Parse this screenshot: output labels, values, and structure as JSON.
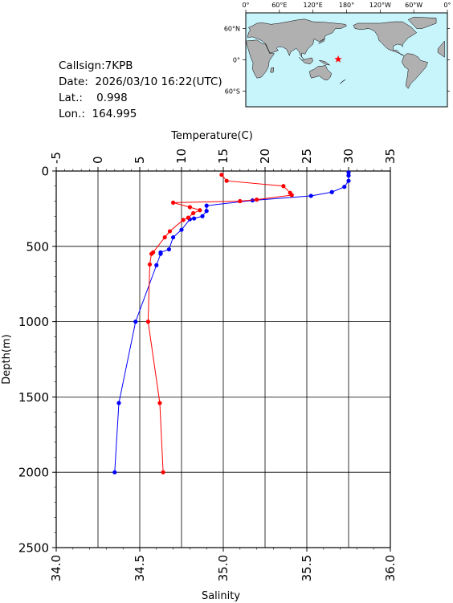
{
  "station": {
    "callsign_line": "Callsign:7KPB",
    "date_line": "Date:  2026/03/10 16:22(UTC)",
    "lat_line": "Lat.:    0.998",
    "lon_line": "Lon.:  164.995"
  },
  "map": {
    "lon_ticks": [
      "0°",
      "60°E",
      "120°E",
      "180°",
      "120°W",
      "60°W",
      "0°"
    ],
    "lat_ticks": [
      "60°N",
      "0°",
      "60°S"
    ],
    "marker_lon": 164.995,
    "marker_lat": 0.998,
    "ocean_color": "#c8f4fc",
    "land_color": "#b0b0b0",
    "marker_color": "#ff0000"
  },
  "chart_data": {
    "type": "line",
    "ylabel": "Depth(m)",
    "ylim": [
      0,
      2500
    ],
    "y_inverted": true,
    "yticks": [
      0,
      500,
      1000,
      1500,
      2000,
      2500
    ],
    "top_axis": {
      "label": "Temperature(C)",
      "range": [
        -5,
        35
      ],
      "ticks": [
        -5,
        0,
        5,
        10,
        15,
        20,
        25,
        30,
        35
      ]
    },
    "bottom_axis": {
      "label": "Salinity",
      "range": [
        34.0,
        36.0
      ],
      "ticks": [
        "34.0",
        "34.5",
        "35.0",
        "35.5",
        "36.0"
      ]
    },
    "grid": true,
    "series": [
      {
        "axis": "top",
        "color": "#0000ff",
        "points": [
          [
            30.0,
            10
          ],
          [
            30.0,
            30
          ],
          [
            30.0,
            65
          ],
          [
            29.5,
            105
          ],
          [
            28.0,
            140
          ],
          [
            25.5,
            165
          ],
          [
            18.5,
            195
          ],
          [
            13.0,
            230
          ],
          [
            13.0,
            265
          ],
          [
            12.5,
            300
          ],
          [
            11.5,
            315
          ],
          [
            11.0,
            320
          ],
          [
            10.0,
            390
          ],
          [
            9.0,
            440
          ],
          [
            8.5,
            520
          ],
          [
            7.5,
            540
          ],
          [
            7.5,
            550
          ],
          [
            7.0,
            625
          ],
          [
            4.5,
            1000
          ],
          [
            2.5,
            1540
          ],
          [
            2.0,
            2000
          ]
        ]
      },
      {
        "axis": "bottom",
        "color": "#ff0000",
        "points": [
          [
            34.99,
            25
          ],
          [
            35.02,
            65
          ],
          [
            35.36,
            100
          ],
          [
            35.4,
            145
          ],
          [
            35.41,
            160
          ],
          [
            35.2,
            190
          ],
          [
            35.1,
            200
          ],
          [
            34.7,
            210
          ],
          [
            34.8,
            240
          ],
          [
            34.86,
            260
          ],
          [
            34.82,
            280
          ],
          [
            34.79,
            310
          ],
          [
            34.76,
            325
          ],
          [
            34.68,
            400
          ],
          [
            34.65,
            440
          ],
          [
            34.58,
            540
          ],
          [
            34.57,
            550
          ],
          [
            34.56,
            620
          ],
          [
            34.55,
            1000
          ],
          [
            34.62,
            1540
          ],
          [
            34.64,
            2000
          ]
        ]
      }
    ]
  }
}
